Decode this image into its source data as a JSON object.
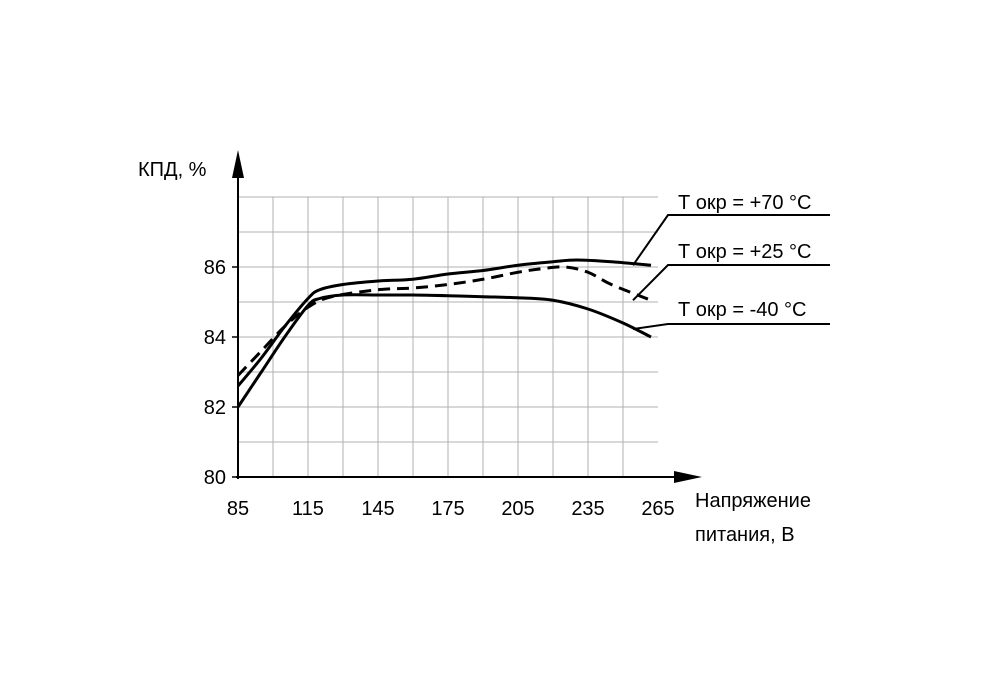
{
  "chart_data": {
    "type": "line",
    "ylabel": "КПД, %",
    "xlabel_lines": [
      "Напряжение",
      "питания, В"
    ],
    "x_ticks": [
      85,
      115,
      145,
      175,
      205,
      235,
      265
    ],
    "y_ticks": [
      80,
      82,
      84,
      86
    ],
    "xlim": [
      85,
      265
    ],
    "ylim": [
      80,
      88
    ],
    "grid": true,
    "colors": {
      "line": "#000000",
      "grid": "#b0b0b0",
      "axis": "#000000"
    },
    "series": [
      {
        "name": "Т окр  = +70 °С",
        "style": "solid",
        "x": [
          85,
          95,
          105,
          115,
          120,
          130,
          145,
          160,
          175,
          190,
          205,
          220,
          230,
          245,
          262
        ],
        "y": [
          82.6,
          83.4,
          84.3,
          85.1,
          85.35,
          85.5,
          85.6,
          85.65,
          85.8,
          85.9,
          86.05,
          86.15,
          86.2,
          86.15,
          86.05
        ]
      },
      {
        "name": "Т окр  = +25 °С",
        "style": "dashed",
        "x": [
          85,
          95,
          105,
          115,
          125,
          145,
          160,
          175,
          190,
          205,
          215,
          225,
          235,
          245,
          262
        ],
        "y": [
          82.9,
          83.6,
          84.3,
          84.85,
          85.15,
          85.35,
          85.4,
          85.5,
          85.65,
          85.85,
          85.95,
          86.0,
          85.85,
          85.5,
          85.05
        ]
      },
      {
        "name": "Т окр  = -40 °С",
        "style": "solid",
        "x": [
          85,
          95,
          105,
          115,
          120,
          130,
          145,
          160,
          175,
          190,
          205,
          220,
          235,
          250,
          262
        ],
        "y": [
          82.0,
          83.0,
          84.0,
          84.9,
          85.1,
          85.2,
          85.2,
          85.2,
          85.18,
          85.15,
          85.12,
          85.05,
          84.8,
          84.4,
          84.0
        ]
      }
    ]
  }
}
